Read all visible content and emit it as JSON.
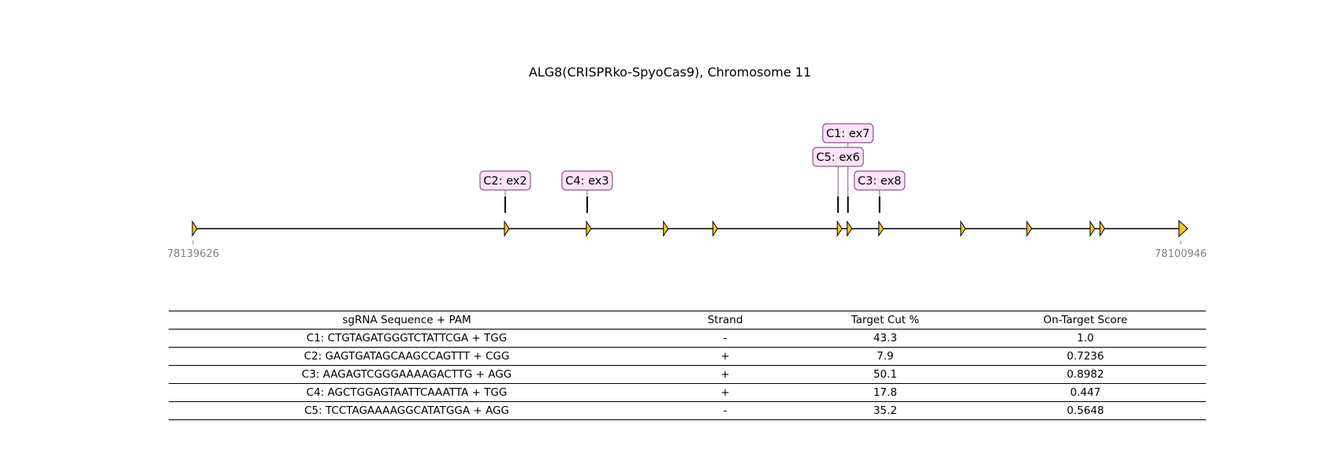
{
  "title": "ALG8(CRISPRko-SpyoCas9), Chromosome 11",
  "gene_map": {
    "start_coord": "78139626",
    "end_coord": "78100946",
    "exons": [
      0,
      31.6,
      39.9,
      47.7,
      52.7,
      65.3,
      66.3,
      69.5,
      77.8,
      84.5,
      90.9,
      91.9,
      99.9
    ],
    "guides": [
      {
        "label": "C1: ex7",
        "pos": 66.3,
        "tier": 3
      },
      {
        "label": "C2: ex2",
        "pos": 31.6,
        "tier": 1
      },
      {
        "label": "C3: ex8",
        "pos": 69.5,
        "tier": 1
      },
      {
        "label": "C4: ex3",
        "pos": 39.9,
        "tier": 1
      },
      {
        "label": "C5: ex6",
        "pos": 65.3,
        "tier": 2
      }
    ]
  },
  "table": {
    "headers": [
      "sgRNA Sequence + PAM",
      "Strand",
      "Target Cut %",
      "On-Target Score"
    ],
    "rows": [
      [
        "C1: CTGTAGATGGGTCTATTCGA + TGG",
        "-",
        "43.3",
        "1.0"
      ],
      [
        "C2: GAGTGATAGCAAGCCAGTTT + CGG",
        "+",
        "7.9",
        "0.7236"
      ],
      [
        "C3: AAGAGTCGGGAAAAGACTTG + AGG",
        "+",
        "50.1",
        "0.8982"
      ],
      [
        "C4: AGCTGGAGTAATTCAAATTA + TGG",
        "+",
        "17.8",
        "0.447"
      ],
      [
        "C5: TCCTAGAAAAGGCATATGGA + AGG",
        "-",
        "35.2",
        "0.5648"
      ]
    ]
  },
  "colors": {
    "exon_fill": "#f5c518",
    "label_fill": "#fde3f7",
    "label_border": "#8a5a8a",
    "coord_text": "#808080"
  }
}
